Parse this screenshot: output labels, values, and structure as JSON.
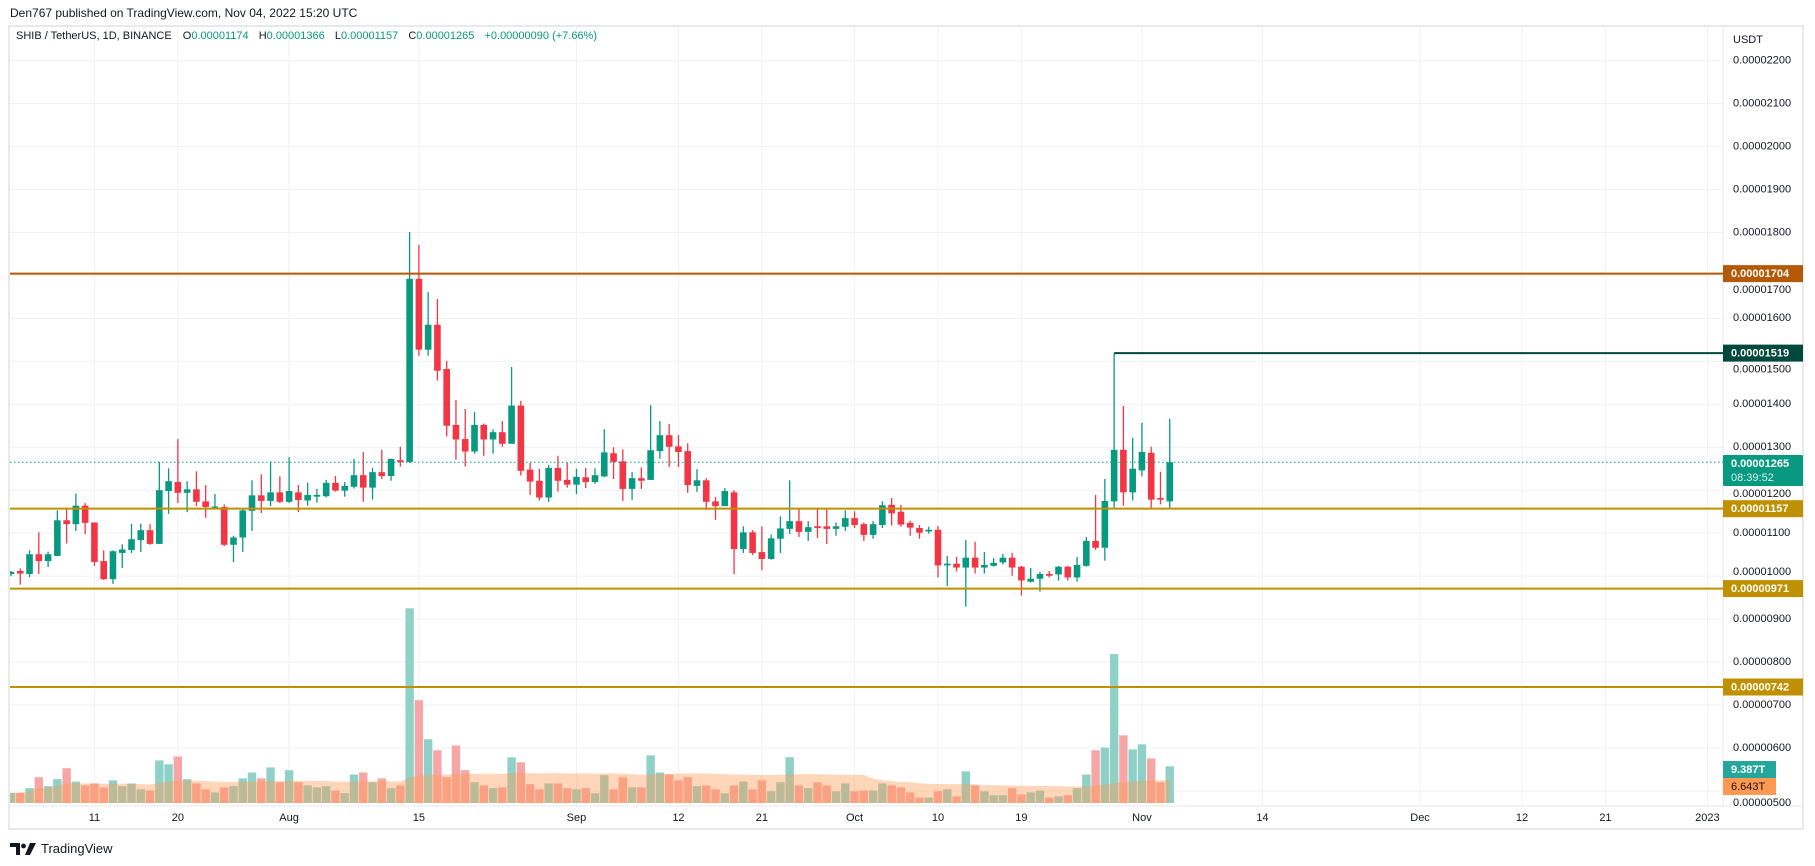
{
  "header": {
    "published": "Den767 published on TradingView.com, Nov 04, 2022 15:20 UTC"
  },
  "legend": {
    "symbol": "SHIB / TetherUS, 1D, BINANCE",
    "o_label": "O",
    "o": "0.00001174",
    "h_label": "H",
    "h": "0.00001366",
    "l_label": "L",
    "l": "0.00001157",
    "c_label": "C",
    "c": "0.00001265",
    "change": "+0.00000090 (+7.66%)"
  },
  "colors": {
    "up": "#089981",
    "down": "#F23645",
    "volume_up": "#8fd1c7",
    "volume_down": "#f7a6a6",
    "volume_ma": "#ff9850",
    "grid": "#f0f1f4",
    "last_price": "#089981"
  },
  "price_axis": {
    "currency": "USDT",
    "labels": [
      "0.00002200",
      "0.00002100",
      "0.00002000",
      "0.00001900",
      "0.00001800",
      "0.00001700",
      "0.00001600",
      "0.00001500",
      "0.00001400",
      "0.00001300",
      "0.00001200",
      "0.00001100",
      "0.00001000",
      "0.00000900",
      "0.00000800",
      "0.00000700",
      "0.00000600",
      "0.00000500"
    ]
  },
  "time_axis": {
    "ticks": [
      {
        "label": "11",
        "date": "2022-07-11"
      },
      {
        "label": "20",
        "date": "2022-07-20"
      },
      {
        "label": "Aug",
        "date": "2022-08-01"
      },
      {
        "label": "15",
        "date": "2022-08-15"
      },
      {
        "label": "Sep",
        "date": "2022-09-01"
      },
      {
        "label": "12",
        "date": "2022-09-12"
      },
      {
        "label": "21",
        "date": "2022-09-21"
      },
      {
        "label": "Oct",
        "date": "2022-10-01"
      },
      {
        "label": "10",
        "date": "2022-10-10"
      },
      {
        "label": "19",
        "date": "2022-10-19"
      },
      {
        "label": "Nov",
        "date": "2022-11-01"
      },
      {
        "label": "14",
        "date": "2022-11-14"
      },
      {
        "label": "Dec",
        "date": "2022-12-01"
      },
      {
        "label": "12",
        "date": "2022-12-12"
      },
      {
        "label": "21",
        "date": "2022-12-21"
      },
      {
        "label": "2023",
        "date": "2023-01-01"
      }
    ]
  },
  "levels": [
    {
      "label": "0.00001704",
      "color": "#b35a06"
    },
    {
      "label": "0.00001519",
      "color": "#01493c",
      "from": "2022-10-29"
    },
    {
      "label": "0.00001157",
      "color": "#bf9000"
    },
    {
      "label": "0.00000971",
      "color": "#bf9000"
    },
    {
      "label": "0.00000742",
      "color": "#bf9000"
    }
  ],
  "last_price": {
    "label": "0.00001265",
    "countdown": "08:39:52"
  },
  "volume": {
    "last_label": "9.387T",
    "last_color": "#26a69a",
    "ma_label": "6.643T",
    "ma_color": "#ff9850"
  },
  "chart_data": {
    "type": "candlestick",
    "symbol": "SHIB / TetherUS",
    "interval": "1D",
    "ylim": [
      5e-06,
      2.2e-05
    ],
    "grid": true,
    "columns": [
      "date",
      "open",
      "high",
      "low",
      "close",
      "volume_T"
    ],
    "rows": [
      [
        "2022-07-02",
        1.005e-05,
        1.012e-05,
        1e-05,
        1.01e-05,
        2.6
      ],
      [
        "2022-07-03",
        1.012e-05,
        1.018e-05,
        9.8e-06,
        1.006e-05,
        2.6
      ],
      [
        "2022-07-04",
        1.005e-05,
        1.06e-05,
        9.98e-06,
        1.051e-05,
        3.8
      ],
      [
        "2022-07-05",
        1.051e-05,
        1.102e-05,
        1.005e-05,
        1.035e-05,
        6.6
      ],
      [
        "2022-07-06",
        1.035e-05,
        1.057e-05,
        1.021e-05,
        1.051e-05,
        4.3
      ],
      [
        "2022-07-07",
        1.047e-05,
        1.153e-05,
        1.047e-05,
        1.13e-05,
        6.1
      ],
      [
        "2022-07-08",
        1.13e-05,
        1.159e-05,
        1.076e-05,
        1.121e-05,
        8.9
      ],
      [
        "2022-07-09",
        1.121e-05,
        1.192e-05,
        1.105e-05,
        1.164e-05,
        5.5
      ],
      [
        "2022-07-10",
        1.164e-05,
        1.17e-05,
        1.098e-05,
        1.124e-05,
        4.5
      ],
      [
        "2022-07-11",
        1.125e-05,
        1.125e-05,
        1.024e-05,
        1.033e-05,
        5.0
      ],
      [
        "2022-07-12",
        1.035e-05,
        1.06e-05,
        9.91e-06,
        9.93e-06,
        4.0
      ],
      [
        "2022-07-13",
        9.93e-06,
        1.06e-05,
        9.82e-06,
        1.058e-05,
        5.8
      ],
      [
        "2022-07-14",
        1.054e-05,
        1.074e-05,
        1.019e-05,
        1.062e-05,
        4.3
      ],
      [
        "2022-07-15",
        1.061e-05,
        1.122e-05,
        1.054e-05,
        1.086e-05,
        5.0
      ],
      [
        "2022-07-16",
        1.084e-05,
        1.122e-05,
        1.056e-05,
        1.107e-05,
        3.5
      ],
      [
        "2022-07-17",
        1.107e-05,
        1.121e-05,
        1.073e-05,
        1.075e-05,
        3.2
      ],
      [
        "2022-07-18",
        1.075e-05,
        1.266e-05,
        1.075e-05,
        1.2e-05,
        10.9
      ],
      [
        "2022-07-19",
        1.198e-05,
        1.251e-05,
        1.145e-05,
        1.221e-05,
        9.9
      ],
      [
        "2022-07-20",
        1.219e-05,
        1.319e-05,
        1.17e-05,
        1.194e-05,
        11.9
      ],
      [
        "2022-07-21",
        1.194e-05,
        1.221e-05,
        1.149e-05,
        1.202e-05,
        6.1
      ],
      [
        "2022-07-22",
        1.202e-05,
        1.244e-05,
        1.163e-05,
        1.173e-05,
        5.0
      ],
      [
        "2022-07-23",
        1.174e-05,
        1.212e-05,
        1.136e-05,
        1.161e-05,
        3.5
      ],
      [
        "2022-07-24",
        1.16e-05,
        1.191e-05,
        1.157e-05,
        1.162e-05,
        2.7
      ],
      [
        "2022-07-25",
        1.161e-05,
        1.167e-05,
        1.07e-05,
        1.073e-05,
        4.0
      ],
      [
        "2022-07-26",
        1.073e-05,
        1.094e-05,
        1.033e-05,
        1.09e-05,
        4.3
      ],
      [
        "2022-07-27",
        1.09e-05,
        1.158e-05,
        1.056e-05,
        1.153e-05,
        6.3
      ],
      [
        "2022-07-28",
        1.152e-05,
        1.223e-05,
        1.105e-05,
        1.188e-05,
        7.8
      ],
      [
        "2022-07-29",
        1.188e-05,
        1.237e-05,
        1.147e-05,
        1.175e-05,
        6.3
      ],
      [
        "2022-07-30",
        1.175e-05,
        1.267e-05,
        1.163e-05,
        1.195e-05,
        9.1
      ],
      [
        "2022-07-31",
        1.195e-05,
        1.232e-05,
        1.17e-05,
        1.173e-05,
        5.3
      ],
      [
        "2022-08-01",
        1.173e-05,
        1.277e-05,
        1.17e-05,
        1.198e-05,
        8.4
      ],
      [
        "2022-08-02",
        1.195e-05,
        1.212e-05,
        1.149e-05,
        1.177e-05,
        5.3
      ],
      [
        "2022-08-03",
        1.176e-05,
        1.217e-05,
        1.164e-05,
        1.189e-05,
        4.5
      ],
      [
        "2022-08-04",
        1.185e-05,
        1.203e-05,
        1.171e-05,
        1.189e-05,
        4.0
      ],
      [
        "2022-08-05",
        1.186e-05,
        1.224e-05,
        1.183e-05,
        1.217e-05,
        4.3
      ],
      [
        "2022-08-06",
        1.217e-05,
        1.233e-05,
        1.197e-05,
        1.199e-05,
        3.2
      ],
      [
        "2022-08-07",
        1.199e-05,
        1.219e-05,
        1.185e-05,
        1.21e-05,
        2.5
      ],
      [
        "2022-08-08",
        1.208e-05,
        1.273e-05,
        1.204e-05,
        1.235e-05,
        7.3
      ],
      [
        "2022-08-09",
        1.235e-05,
        1.289e-05,
        1.173e-05,
        1.206e-05,
        7.8
      ],
      [
        "2022-08-10",
        1.206e-05,
        1.252e-05,
        1.178e-05,
        1.242e-05,
        5.3
      ],
      [
        "2022-08-11",
        1.242e-05,
        1.294e-05,
        1.226e-05,
        1.233e-05,
        6.3
      ],
      [
        "2022-08-12",
        1.233e-05,
        1.273e-05,
        1.222e-05,
        1.273e-05,
        3.8
      ],
      [
        "2022-08-13",
        1.27e-05,
        1.301e-05,
        1.255e-05,
        1.266e-05,
        4.5
      ],
      [
        "2022-08-14",
        1.266e-05,
        1.801e-05,
        1.264e-05,
        1.692e-05,
        49.8
      ],
      [
        "2022-08-15",
        1.692e-05,
        1.771e-05,
        1.513e-05,
        1.527e-05,
        26.3
      ],
      [
        "2022-08-16",
        1.527e-05,
        1.661e-05,
        1.513e-05,
        1.585e-05,
        16.3
      ],
      [
        "2022-08-17",
        1.585e-05,
        1.645e-05,
        1.455e-05,
        1.478e-05,
        13.5
      ],
      [
        "2022-08-18",
        1.482e-05,
        1.501e-05,
        1.325e-05,
        1.35e-05,
        6.6
      ],
      [
        "2022-08-19",
        1.352e-05,
        1.41e-05,
        1.271e-05,
        1.318e-05,
        14.7
      ],
      [
        "2022-08-20",
        1.319e-05,
        1.389e-05,
        1.255e-05,
        1.29e-05,
        8.4
      ],
      [
        "2022-08-21",
        1.29e-05,
        1.382e-05,
        1.285e-05,
        1.352e-05,
        5.3
      ],
      [
        "2022-08-22",
        1.352e-05,
        1.355e-05,
        1.28e-05,
        1.318e-05,
        4.5
      ],
      [
        "2022-08-23",
        1.318e-05,
        1.342e-05,
        1.285e-05,
        1.335e-05,
        3.8
      ],
      [
        "2022-08-24",
        1.335e-05,
        1.361e-05,
        1.301e-05,
        1.308e-05,
        4.0
      ],
      [
        "2022-08-25",
        1.308e-05,
        1.487e-05,
        1.308e-05,
        1.397e-05,
        11.7
      ],
      [
        "2022-08-26",
        1.397e-05,
        1.408e-05,
        1.234e-05,
        1.245e-05,
        10.4
      ],
      [
        "2022-08-27",
        1.248e-05,
        1.264e-05,
        1.189e-05,
        1.22e-05,
        4.8
      ],
      [
        "2022-08-28",
        1.222e-05,
        1.25e-05,
        1.176e-05,
        1.183e-05,
        3.5
      ],
      [
        "2022-08-29",
        1.183e-05,
        1.259e-05,
        1.173e-05,
        1.252e-05,
        5.0
      ],
      [
        "2022-08-30",
        1.252e-05,
        1.28e-05,
        1.197e-05,
        1.222e-05,
        5.0
      ],
      [
        "2022-08-31",
        1.224e-05,
        1.264e-05,
        1.206e-05,
        1.213e-05,
        3.8
      ],
      [
        "2022-09-01",
        1.213e-05,
        1.25e-05,
        1.191e-05,
        1.231e-05,
        3.5
      ],
      [
        "2022-09-02",
        1.23e-05,
        1.252e-05,
        1.205e-05,
        1.219e-05,
        3.8
      ],
      [
        "2022-09-03",
        1.219e-05,
        1.251e-05,
        1.215e-05,
        1.235e-05,
        2.5
      ],
      [
        "2022-09-04",
        1.232e-05,
        1.342e-05,
        1.23e-05,
        1.288e-05,
        7.1
      ],
      [
        "2022-09-05",
        1.286e-05,
        1.3e-05,
        1.226e-05,
        1.266e-05,
        3.5
      ],
      [
        "2022-09-06",
        1.267e-05,
        1.295e-05,
        1.175e-05,
        1.203e-05,
        6.6
      ],
      [
        "2022-09-07",
        1.203e-05,
        1.242e-05,
        1.177e-05,
        1.228e-05,
        4.0
      ],
      [
        "2022-09-08",
        1.228e-05,
        1.253e-05,
        1.203e-05,
        1.222e-05,
        4.0
      ],
      [
        "2022-09-09",
        1.224e-05,
        1.398e-05,
        1.224e-05,
        1.293e-05,
        12.2
      ],
      [
        "2022-09-10",
        1.291e-05,
        1.361e-05,
        1.273e-05,
        1.328e-05,
        7.8
      ],
      [
        "2022-09-11",
        1.328e-05,
        1.354e-05,
        1.254e-05,
        1.301e-05,
        7.3
      ],
      [
        "2022-09-12",
        1.302e-05,
        1.328e-05,
        1.254e-05,
        1.289e-05,
        5.8
      ],
      [
        "2022-09-13",
        1.291e-05,
        1.309e-05,
        1.194e-05,
        1.212e-05,
        6.6
      ],
      [
        "2022-09-14",
        1.21e-05,
        1.249e-05,
        1.196e-05,
        1.223e-05,
        4.3
      ],
      [
        "2022-09-15",
        1.223e-05,
        1.228e-05,
        1.154e-05,
        1.173e-05,
        4.5
      ],
      [
        "2022-09-16",
        1.174e-05,
        1.184e-05,
        1.131e-05,
        1.163e-05,
        3.5
      ],
      [
        "2022-09-17",
        1.163e-05,
        1.205e-05,
        1.163e-05,
        1.198e-05,
        2.5
      ],
      [
        "2022-09-18",
        1.195e-05,
        1.2e-05,
        1.005e-05,
        1.063e-05,
        4.5
      ],
      [
        "2022-09-19",
        1.063e-05,
        1.116e-05,
        1.054e-05,
        1.102e-05,
        5.5
      ],
      [
        "2022-09-20",
        1.102e-05,
        1.107e-05,
        1.049e-05,
        1.054e-05,
        3.5
      ],
      [
        "2022-09-21",
        1.056e-05,
        1.116e-05,
        1.014e-05,
        1.04e-05,
        5.8
      ],
      [
        "2022-09-22",
        1.04e-05,
        1.097e-05,
        1.038e-05,
        1.088e-05,
        3.0
      ],
      [
        "2022-09-23",
        1.087e-05,
        1.139e-05,
        1.054e-05,
        1.111e-05,
        5.3
      ],
      [
        "2022-09-24",
        1.11e-05,
        1.223e-05,
        1.098e-05,
        1.128e-05,
        11.7
      ],
      [
        "2022-09-25",
        1.128e-05,
        1.159e-05,
        1.091e-05,
        1.103e-05,
        4.5
      ],
      [
        "2022-09-26",
        1.103e-05,
        1.128e-05,
        1.082e-05,
        1.114e-05,
        3.8
      ],
      [
        "2022-09-27",
        1.116e-05,
        1.159e-05,
        1.089e-05,
        1.112e-05,
        5.3
      ],
      [
        "2022-09-28",
        1.116e-05,
        1.159e-05,
        1.075e-05,
        1.11e-05,
        4.5
      ],
      [
        "2022-09-29",
        1.11e-05,
        1.125e-05,
        1.094e-05,
        1.116e-05,
        3.0
      ],
      [
        "2022-09-30",
        1.115e-05,
        1.153e-05,
        1.105e-05,
        1.135e-05,
        5.0
      ],
      [
        "2022-10-01",
        1.135e-05,
        1.151e-05,
        1.112e-05,
        1.119e-05,
        3.0
      ],
      [
        "2022-10-02",
        1.121e-05,
        1.125e-05,
        1.082e-05,
        1.096e-05,
        3.2
      ],
      [
        "2022-10-03",
        1.096e-05,
        1.128e-05,
        1.087e-05,
        1.121e-05,
        3.2
      ],
      [
        "2022-10-04",
        1.119e-05,
        1.174e-05,
        1.112e-05,
        1.165e-05,
        5.0
      ],
      [
        "2022-10-05",
        1.166e-05,
        1.182e-05,
        1.118e-05,
        1.146e-05,
        4.5
      ],
      [
        "2022-10-06",
        1.15e-05,
        1.166e-05,
        1.115e-05,
        1.12e-05,
        4.0
      ],
      [
        "2022-10-07",
        1.124e-05,
        1.129e-05,
        1.094e-05,
        1.113e-05,
        2.7
      ],
      [
        "2022-10-08",
        1.112e-05,
        1.119e-05,
        1.087e-05,
        1.101e-05,
        1.4
      ],
      [
        "2022-10-09",
        1.104e-05,
        1.115e-05,
        1.099e-05,
        1.108e-05,
        1.4
      ],
      [
        "2022-10-10",
        1.108e-05,
        1.117e-05,
        9.97e-06,
        1.025e-05,
        3.0
      ],
      [
        "2022-10-11",
        1.025e-05,
        1.047e-05,
        9.77e-06,
        1.029e-05,
        3.5
      ],
      [
        "2022-10-12",
        1.029e-05,
        1.045e-05,
        1.011e-05,
        1.02e-05,
        1.7
      ],
      [
        "2022-10-13",
        1.02e-05,
        1.084e-05,
        9.29e-06,
        1.043e-05,
        8.1
      ],
      [
        "2022-10-14",
        1.043e-05,
        1.08e-05,
        1.006e-05,
        1.02e-05,
        4.5
      ],
      [
        "2022-10-15",
        1.02e-05,
        1.056e-05,
        1.006e-05,
        1.026e-05,
        3.0
      ],
      [
        "2022-10-16",
        1.024e-05,
        1.042e-05,
        1.022e-05,
        1.031e-05,
        2.0
      ],
      [
        "2022-10-17",
        1.032e-05,
        1.052e-05,
        1.027e-05,
        1.043e-05,
        2.0
      ],
      [
        "2022-10-18",
        1.043e-05,
        1.054e-05,
        1.001e-05,
        1.02e-05,
        3.8
      ],
      [
        "2022-10-19",
        1.022e-05,
        1.024e-05,
        9.55e-06,
        9.9e-06,
        2.2
      ],
      [
        "2022-10-20",
        9.87e-06,
        1.019e-05,
        9.85e-06,
        9.94e-06,
        2.7
      ],
      [
        "2022-10-21",
        9.94e-06,
        1.01e-05,
        9.64e-06,
        1.005e-05,
        3.2
      ],
      [
        "2022-10-22",
        1.005e-05,
        1.012e-05,
        9.97e-06,
        1.001e-05,
        1.4
      ],
      [
        "2022-10-23",
        1.004e-05,
        1.024e-05,
        9.9e-06,
        1.022e-05,
        1.7
      ],
      [
        "2022-10-24",
        1.022e-05,
        1.024e-05,
        9.9e-06,
        9.97e-06,
        2.0
      ],
      [
        "2022-10-25",
        9.97e-06,
        1.045e-05,
        9.87e-06,
        1.026e-05,
        3.8
      ],
      [
        "2022-10-26",
        1.024e-05,
        1.091e-05,
        1.022e-05,
        1.082e-05,
        7.3
      ],
      [
        "2022-10-27",
        1.082e-05,
        1.189e-05,
        1.061e-05,
        1.066e-05,
        13.5
      ],
      [
        "2022-10-28",
        1.066e-05,
        1.226e-05,
        1.036e-05,
        1.175e-05,
        14.2
      ],
      [
        "2022-10-29",
        1.174e-05,
        1.519e-05,
        1.157e-05,
        1.294e-05,
        38.1
      ],
      [
        "2022-10-30",
        1.294e-05,
        1.396e-05,
        1.164e-05,
        1.195e-05,
        17.3
      ],
      [
        "2022-10-31",
        1.195e-05,
        1.322e-05,
        1.176e-05,
        1.25e-05,
        13.7
      ],
      [
        "2022-11-01",
        1.246e-05,
        1.357e-05,
        1.232e-05,
        1.289e-05,
        15.0
      ],
      [
        "2022-11-02",
        1.287e-05,
        1.301e-05,
        1.155e-05,
        1.178e-05,
        11.4
      ],
      [
        "2022-11-03",
        1.182e-05,
        1.243e-05,
        1.167e-05,
        1.178e-05,
        5.3
      ],
      [
        "2022-11-04",
        1.174e-05,
        1.366e-05,
        1.157e-05,
        1.265e-05,
        9.387
      ]
    ]
  },
  "footer": {
    "brand": "TradingView"
  }
}
